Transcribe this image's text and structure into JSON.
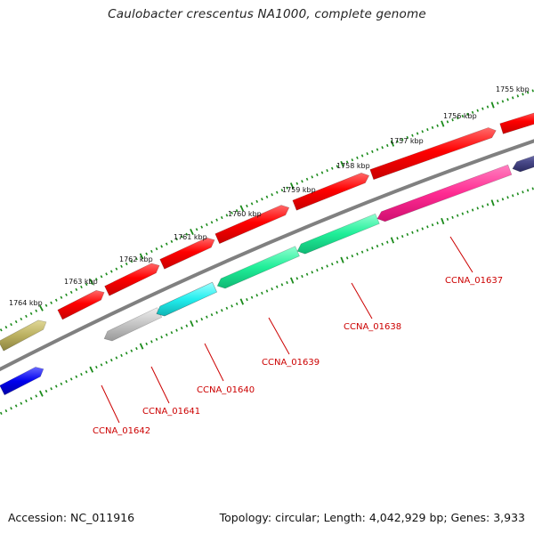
{
  "title": "Caulobacter crescentus NA1000, complete genome",
  "footer": {
    "accession": "Accession: NC_011916",
    "summary": "Topology: circular; Length: 4,042,929 bp; Genes: 3,933"
  },
  "kbp_ticks": [
    "1755 kbp",
    "1756 kbp",
    "1757 kbp",
    "1758 kbp",
    "1759 kbp",
    "1760 kbp",
    "1761 kbp",
    "1762 kbp",
    "1763 kbp",
    "1764 kbp"
  ],
  "gene_labels": [
    "CCNA_01637",
    "CCNA_01638",
    "CCNA_01639",
    "CCNA_01640",
    "CCNA_01641",
    "CCNA_01642"
  ],
  "colors": {
    "backbone": "#808080",
    "tick": "#1a8a1a",
    "label": "#cc0000",
    "red_feature": "#ff0000",
    "pink_feature": "#ff3399",
    "green_feature": "#22ee99",
    "cyan_feature": "#22eeee",
    "gray_feature": "#c4c4c4",
    "olive_feature": "#bbb060",
    "blue_feature": "#0000ee",
    "navy_feature": "#4a4a8a"
  }
}
